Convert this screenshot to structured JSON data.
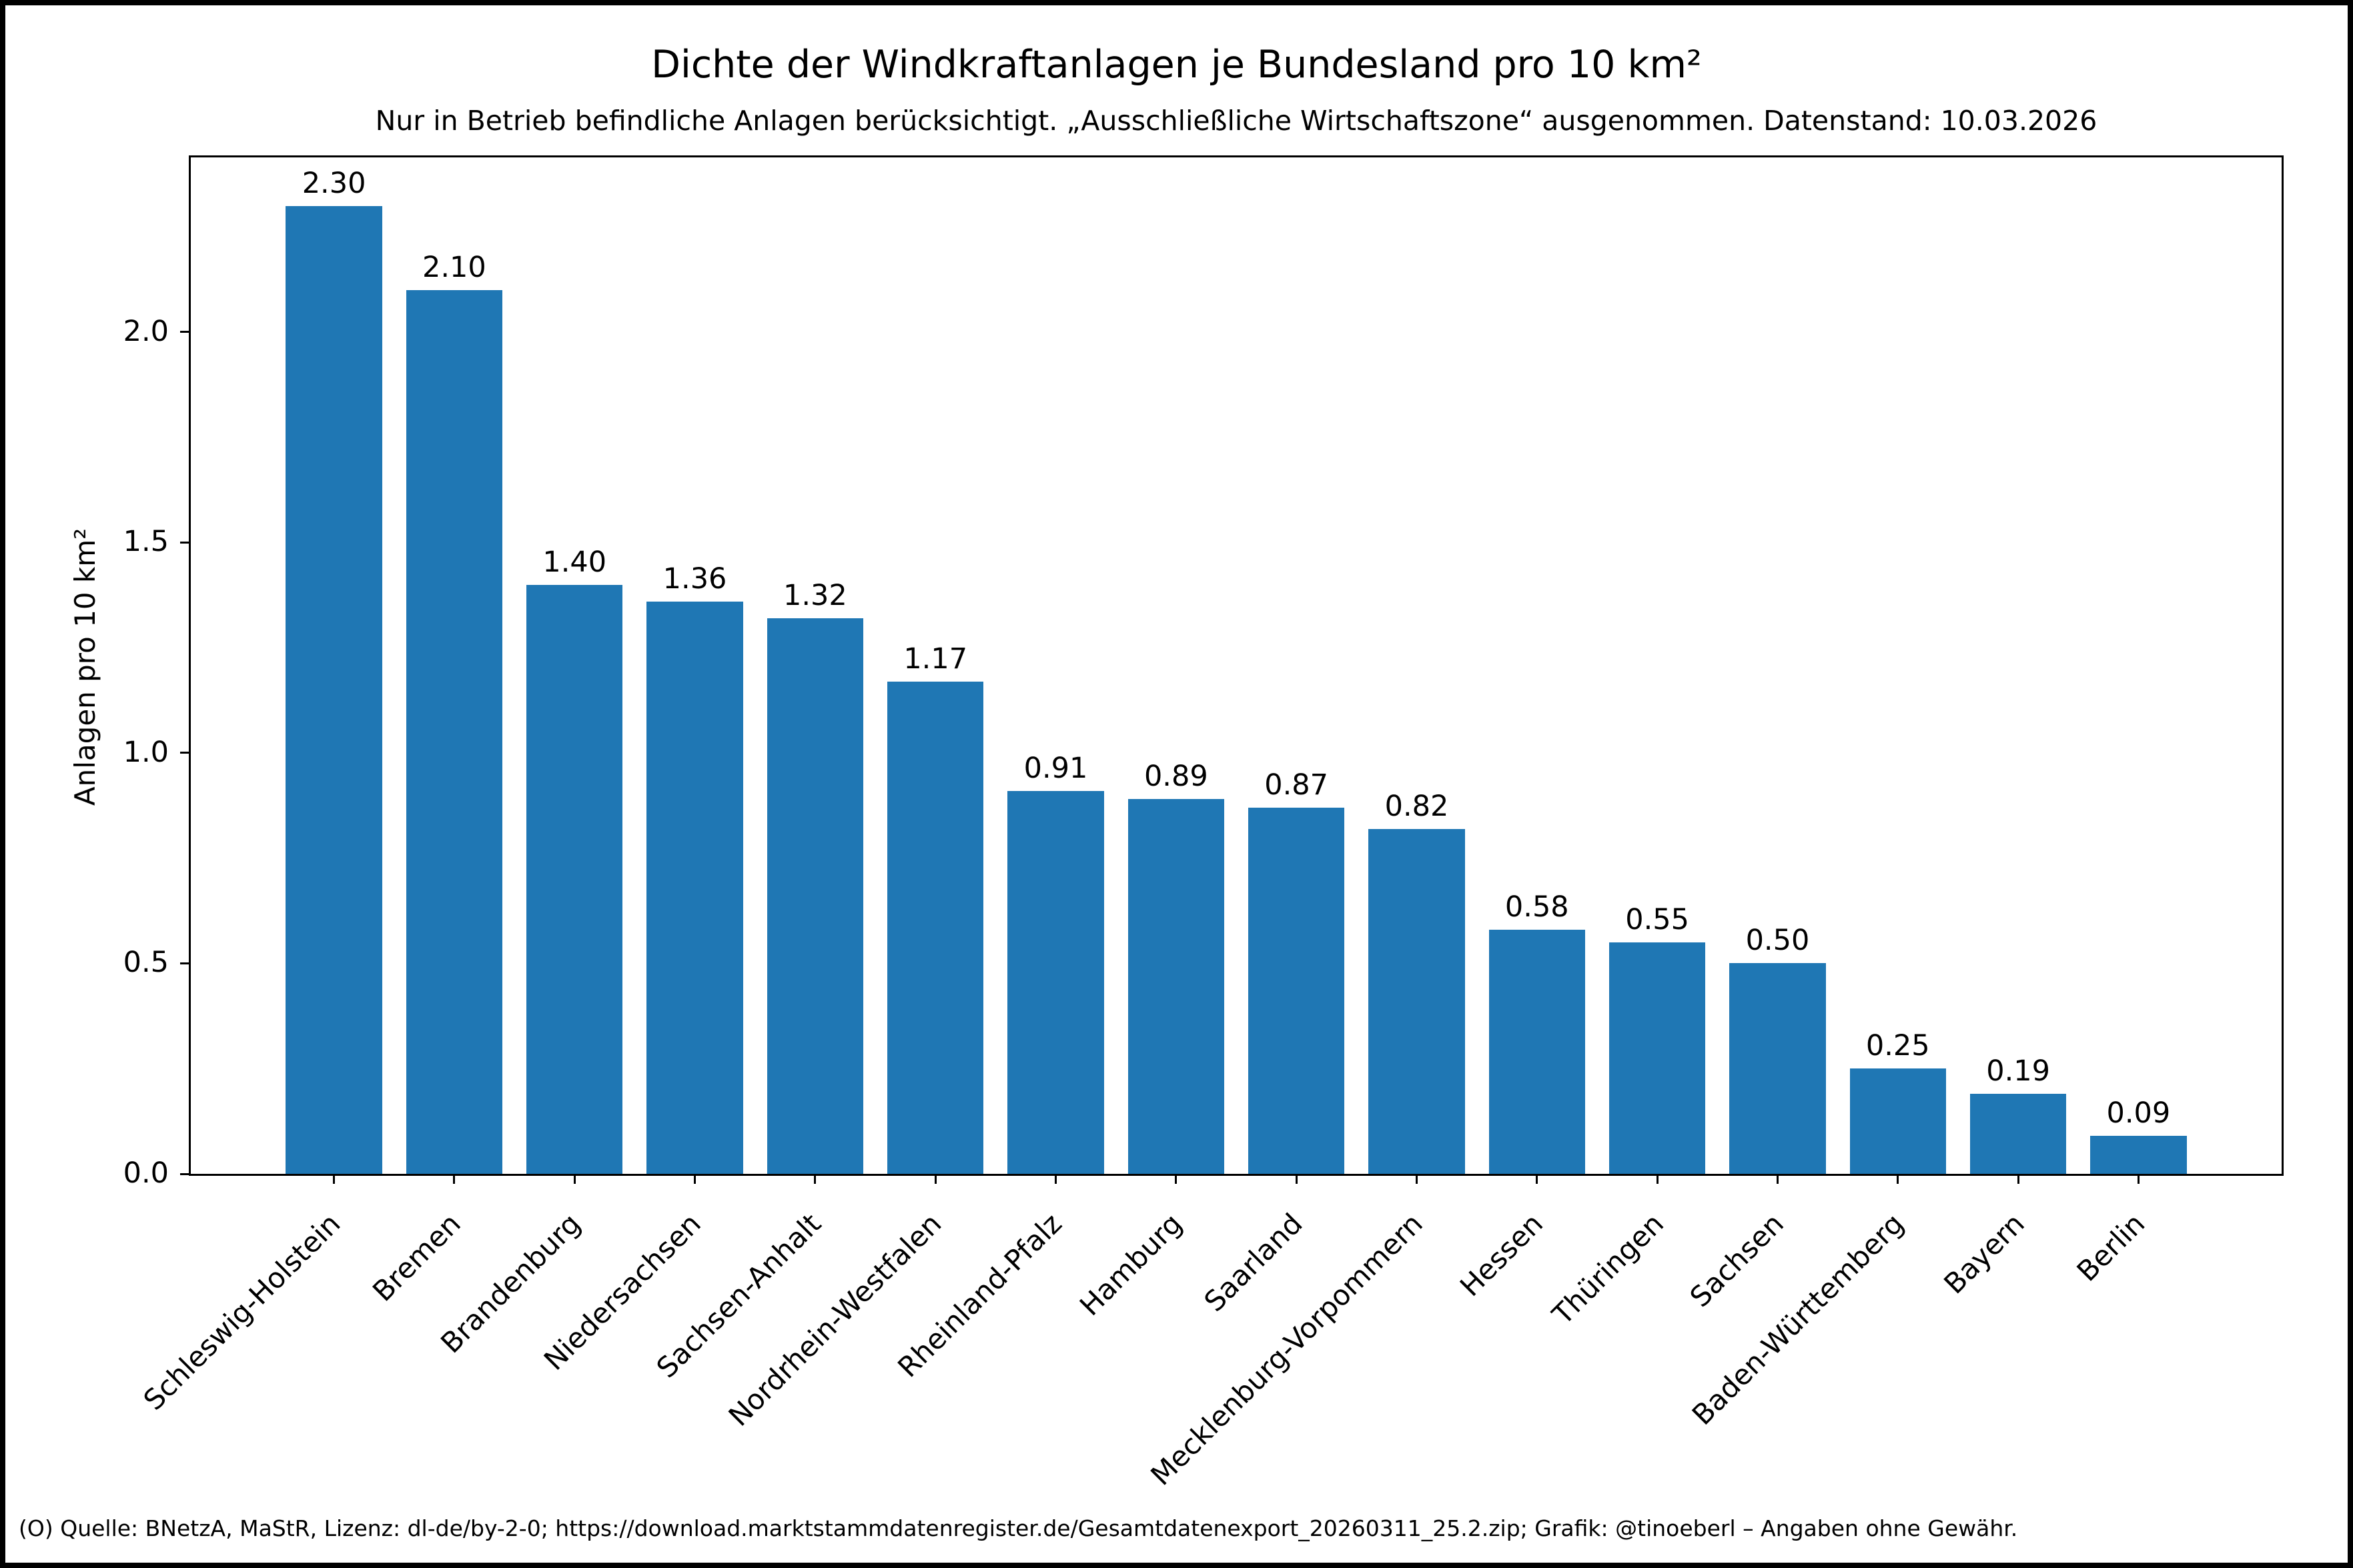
{
  "figure": {
    "background": "#ffffff",
    "frame_color": "#000000"
  },
  "chart_data": {
    "type": "bar",
    "title": "Dichte der Windkraftanlagen je Bundesland pro 10 km²",
    "subtitle": "Nur in Betrieb befindliche Anlagen berücksichtigt. „Ausschließliche Wirtschaftszone“ ausgenommen. Datenstand: 10.03.2026",
    "xlabel": "",
    "ylabel": "Anlagen pro 10 km²",
    "categories": [
      "Schleswig-Holstein",
      "Bremen",
      "Brandenburg",
      "Niedersachsen",
      "Sachsen-Anhalt",
      "Nordrhein-Westfalen",
      "Rheinland-Pfalz",
      "Hamburg",
      "Saarland",
      "Mecklenburg-Vorpommern",
      "Hessen",
      "Thüringen",
      "Sachsen",
      "Baden-Württemberg",
      "Bayern",
      "Berlin"
    ],
    "values": [
      2.3,
      2.1,
      1.4,
      1.36,
      1.32,
      1.17,
      0.91,
      0.89,
      0.87,
      0.82,
      0.58,
      0.55,
      0.5,
      0.25,
      0.19,
      0.09
    ],
    "value_labels": [
      "2.30",
      "2.10",
      "1.40",
      "1.36",
      "1.32",
      "1.17",
      "0.91",
      "0.89",
      "0.87",
      "0.82",
      "0.58",
      "0.55",
      "0.50",
      "0.25",
      "0.19",
      "0.09"
    ],
    "ytick_labels": [
      "0.0",
      "0.5",
      "1.0",
      "1.5",
      "2.0"
    ],
    "ylim": [
      0,
      2.415
    ],
    "bar_color": "#1f77b4",
    "axis_color": "#000000",
    "grid": false,
    "legend": "none"
  },
  "footer": "(O) Quelle: BNetzA, MaStR, Lizenz: dl-de/by-2-0; https://download.marktstammdatenregister.de/Gesamtdatenexport_20260311_25.2.zip; Grafik: @tinoeberl – Angaben ohne Gewähr."
}
